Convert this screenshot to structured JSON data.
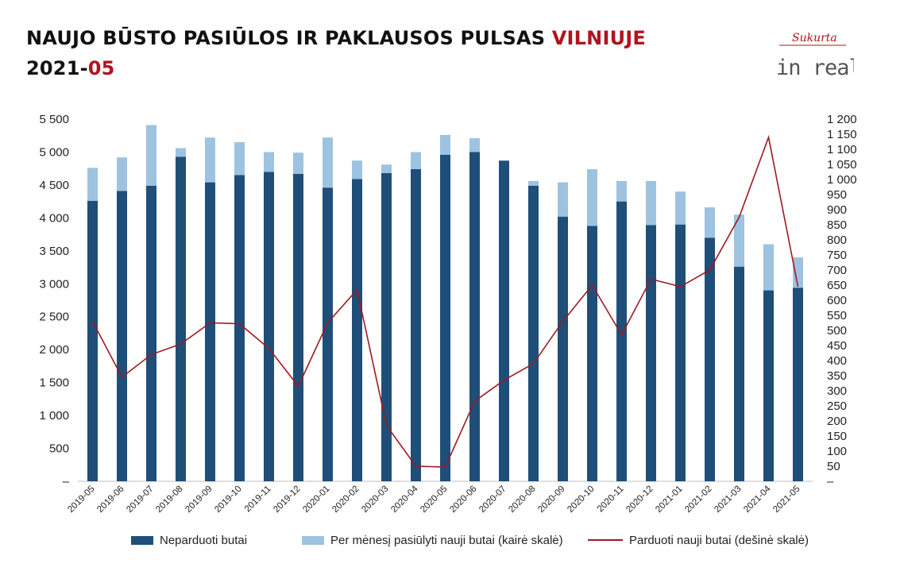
{
  "header": {
    "title_main": "NAUJO BŪSTO PASIŪLOS IR PAKLAUSOS PULSAS ",
    "title_city": "VILNIUJE",
    "period_year": "2021-",
    "period_month": "05"
  },
  "logo": {
    "tagline": "Sukurta",
    "brand": "in real"
  },
  "colors": {
    "unsold": "#1f4e79",
    "offered": "#9dc3e0",
    "sold_line": "#9b1b22",
    "accent": "#b0141e"
  },
  "chart_data": {
    "type": "bar",
    "categories": [
      "2019-05",
      "2019-06",
      "2019-07",
      "2019-08",
      "2019-09",
      "2019-10",
      "2019-11",
      "2019-12",
      "2020-01",
      "2020-02",
      "2020-03",
      "2020-04",
      "2020-05",
      "2020-06",
      "2020-07",
      "2020-08",
      "2020-09",
      "2020-10",
      "2020-11",
      "2020-12",
      "2021-01",
      "2021-02",
      "2021-03",
      "2021-04",
      "2021-05"
    ],
    "series": [
      {
        "name": "Neparduoti butai",
        "kind": "bar",
        "axis": "left",
        "values": [
          4260,
          4410,
          4490,
          4930,
          4540,
          4650,
          4700,
          4670,
          4460,
          4590,
          4680,
          4740,
          4960,
          5000,
          4870,
          4490,
          4020,
          3880,
          4250,
          3890,
          3900,
          3700,
          3260,
          2900,
          2940
        ]
      },
      {
        "name": "Per mėnesį pasiūlyti nauji butai (kairė skalė)",
        "kind": "bar-stacked",
        "axis": "left",
        "values": [
          500,
          510,
          920,
          130,
          680,
          500,
          300,
          320,
          760,
          280,
          130,
          260,
          300,
          210,
          0,
          70,
          520,
          860,
          310,
          670,
          500,
          460,
          790,
          700,
          460
        ]
      },
      {
        "name": "Parduoti nauji butai (dešinė skalė)",
        "kind": "line",
        "axis": "right",
        "values": [
          530,
          345,
          420,
          455,
          525,
          522,
          440,
          315,
          525,
          635,
          185,
          50,
          47,
          265,
          335,
          390,
          530,
          650,
          485,
          670,
          645,
          700,
          875,
          1140,
          645
        ]
      }
    ],
    "left_axis": {
      "min": 0,
      "max": 5500,
      "step": 500,
      "tick_labels": [
        "–",
        "500",
        "1 000",
        "1 500",
        "2 000",
        "2 500",
        "3 000",
        "3 500",
        "4 000",
        "4 500",
        "5 000",
        "5 500"
      ]
    },
    "right_axis": {
      "min": 0,
      "max": 1200,
      "step": 50,
      "tick_labels": [
        "–",
        "50",
        "100",
        "150",
        "200",
        "250",
        "300",
        "350",
        "400",
        "450",
        "500",
        "550",
        "600",
        "650",
        "700",
        "750",
        "800",
        "850",
        "900",
        "950",
        "1 000",
        "1 050",
        "1 100",
        "1 150",
        "1 200"
      ]
    },
    "grid": false,
    "legend_position": "bottom"
  }
}
